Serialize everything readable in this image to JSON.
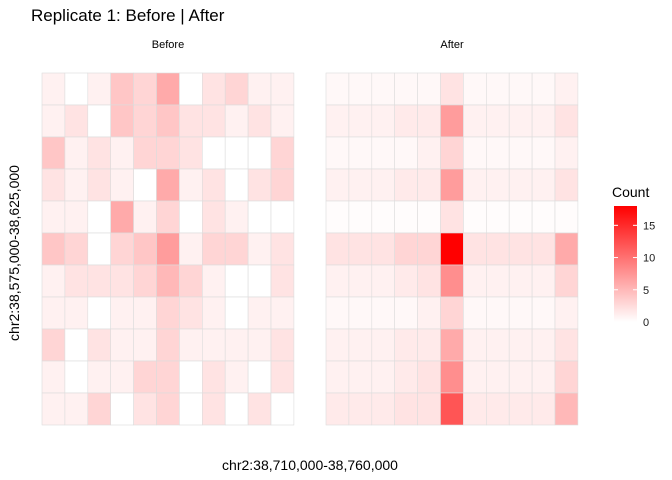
{
  "chart_data": {
    "type": "heatmap",
    "title": "Replicate 1: Before | After",
    "xlabel": "chr2:38,710,000-38,760,000",
    "ylabel": "chr2:38,575,000-38,625,000",
    "legend": {
      "title": "Count",
      "position": "right",
      "ticks": [
        0,
        5,
        10,
        15
      ],
      "range": [
        0,
        18
      ],
      "low_color": "#ffffff",
      "high_color": "#ff0000"
    },
    "grid": false,
    "panels": [
      {
        "name": "Before",
        "values": [
          [
            1,
            0,
            1,
            4,
            3,
            6,
            0,
            2,
            3,
            1,
            1
          ],
          [
            1,
            2,
            0,
            4,
            3,
            4,
            2,
            2,
            1,
            2,
            1
          ],
          [
            4,
            1,
            2,
            1,
            3,
            3,
            2,
            0,
            0,
            0,
            3
          ],
          [
            2,
            1,
            2,
            1,
            0,
            6,
            1,
            2,
            0,
            2,
            3
          ],
          [
            1,
            1,
            0,
            6,
            1,
            3,
            0,
            2,
            1,
            0,
            0
          ],
          [
            4,
            3,
            0,
            3,
            4,
            7,
            1,
            3,
            3,
            1,
            2
          ],
          [
            1,
            2,
            2,
            2,
            3,
            5,
            3,
            1,
            0,
            0,
            2
          ],
          [
            1,
            1,
            0,
            1,
            1,
            3,
            2,
            1,
            0,
            1,
            1
          ],
          [
            3,
            0,
            2,
            1,
            1,
            3,
            1,
            1,
            1,
            1,
            2
          ],
          [
            1,
            0,
            1,
            1,
            3,
            3,
            0,
            2,
            1,
            0,
            2
          ],
          [
            1,
            1,
            3,
            0,
            2,
            3,
            0,
            2,
            0,
            2,
            0
          ]
        ]
      },
      {
        "name": "After",
        "values": [
          [
            0.5,
            0.5,
            0.5,
            0.5,
            0.5,
            2,
            0.5,
            0.5,
            0.5,
            0.5,
            1
          ],
          [
            1,
            1,
            1,
            1.5,
            1.5,
            7,
            1,
            1,
            1,
            1,
            2
          ],
          [
            0.5,
            0.5,
            0.5,
            0.5,
            1,
            3,
            0.5,
            0.5,
            0.5,
            0.5,
            1
          ],
          [
            1,
            1,
            1,
            1.5,
            1.5,
            7,
            1,
            1,
            1,
            1,
            2
          ],
          [
            0.2,
            0.2,
            0.2,
            0.2,
            0.2,
            2,
            0.2,
            0.2,
            0.2,
            0.2,
            0.2
          ],
          [
            2,
            2,
            2,
            3,
            3,
            18,
            2,
            2,
            2,
            2,
            6
          ],
          [
            1,
            1,
            1,
            1.5,
            2,
            8,
            1,
            1,
            1,
            1,
            3
          ],
          [
            0.5,
            0.5,
            0.5,
            0.5,
            1,
            3,
            0.5,
            0.5,
            0.5,
            0.5,
            1
          ],
          [
            1,
            1,
            1,
            1.5,
            1.5,
            6,
            1,
            1,
            1,
            1,
            2
          ],
          [
            1,
            1,
            1,
            1.5,
            2,
            8,
            1,
            1,
            1,
            1,
            3
          ],
          [
            1.5,
            1.5,
            1.5,
            2,
            2,
            12,
            1.5,
            1.5,
            1.5,
            1.5,
            5
          ]
        ]
      }
    ]
  }
}
